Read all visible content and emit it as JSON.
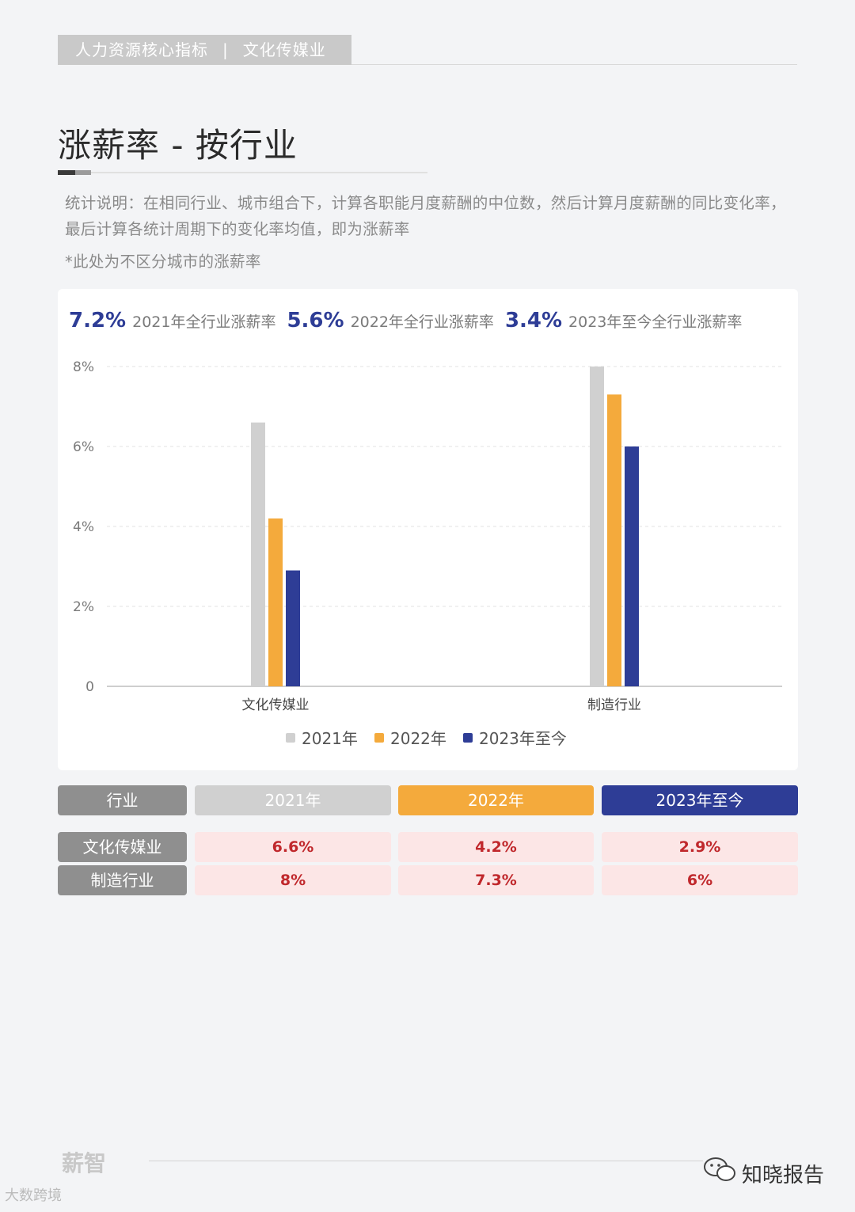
{
  "header": {
    "section": "人力资源核心指标",
    "separator": "|",
    "industry": "文化传媒业"
  },
  "page": {
    "title": "涨薪率 - 按行业",
    "note": "统计说明：在相同行业、城市组合下，计算各职能月度薪酬的中位数，然后计算月度薪酬的同比变化率，最后计算各统计周期下的变化率均值，即为涨薪率",
    "subnote": "*此处为不区分城市的涨薪率"
  },
  "stats": [
    {
      "value": "7.2%",
      "label": "2021年全行业涨薪率"
    },
    {
      "value": "5.6%",
      "label": "2022年全行业涨薪率"
    },
    {
      "value": "3.4%",
      "label": "2023年至今全行业涨薪率"
    }
  ],
  "colors": {
    "y2021": "#d0d0d0",
    "y2022": "#f4aa3c",
    "y2023": "#2e3d96",
    "label_grey": "#8f8f8f",
    "value_red": "#c0282c"
  },
  "chart_data": {
    "type": "bar",
    "categories": [
      "文化传媒业",
      "制造行业"
    ],
    "series": [
      {
        "name": "2021年",
        "values": [
          6.6,
          8
        ]
      },
      {
        "name": "2022年",
        "values": [
          4.2,
          7.3
        ]
      },
      {
        "name": "2023年至今",
        "values": [
          2.9,
          6
        ]
      }
    ],
    "yticks": [
      "0",
      "2%",
      "4%",
      "6%",
      "8%"
    ],
    "ylim": [
      0,
      8
    ],
    "grid": true,
    "legend": "bottom"
  },
  "table": {
    "headers": [
      "行业",
      "2021年",
      "2022年",
      "2023年至今"
    ],
    "rows": [
      {
        "label": "文化传媒业",
        "values": [
          "6.6%",
          "4.2%",
          "2.9%"
        ]
      },
      {
        "label": "制造行业",
        "values": [
          "8%",
          "7.3%",
          "6%"
        ]
      }
    ]
  },
  "footer": {
    "brand": "薪智",
    "brand2": "大数跨境",
    "wechat": "知晓报告"
  }
}
